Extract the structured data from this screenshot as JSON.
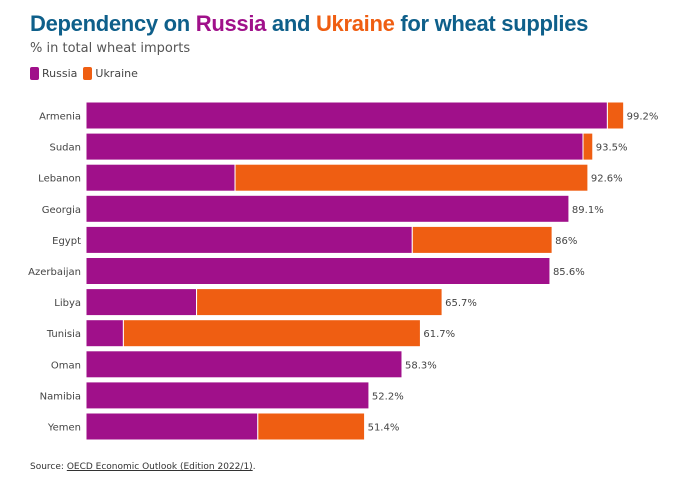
{
  "header": {
    "title_parts": [
      "Dependency on ",
      "Russia",
      " and ",
      "Ukraine",
      " for wheat supplies"
    ],
    "subtitle": "% in total wheat imports"
  },
  "colors": {
    "title": "#0e5f8a",
    "russia": "#a0108a",
    "ukraine": "#ef5e12",
    "label": "#444444",
    "value": "#444444"
  },
  "legend": {
    "russia_label": "Russia",
    "ukraine_label": "Ukraine"
  },
  "source": {
    "prefix": "Source: ",
    "link_text": "OECD Economic Outlook (Edition 2022/1)",
    "suffix": "."
  },
  "chart_data": {
    "type": "bar",
    "orientation": "horizontal",
    "stacked": true,
    "title": "Dependency on Russia and Ukraine for wheat supplies",
    "subtitle": "% in total wheat imports",
    "xlim": [
      0,
      100
    ],
    "grid": false,
    "legend_position": "top-left",
    "categories": [
      "Armenia",
      "Sudan",
      "Lebanon",
      "Georgia",
      "Egypt",
      "Azerbaijan",
      "Libya",
      "Tunisia",
      "Oman",
      "Namibia",
      "Yemen"
    ],
    "series": [
      {
        "name": "Russia",
        "values": [
          96.2,
          91.7,
          27.5,
          89.1,
          60.2,
          85.6,
          20.4,
          6.9,
          58.3,
          52.2,
          31.7
        ]
      },
      {
        "name": "Ukraine",
        "values": [
          3.0,
          1.8,
          65.1,
          0,
          25.8,
          0,
          45.3,
          54.8,
          0,
          0,
          19.7
        ]
      }
    ],
    "totals": [
      99.2,
      93.5,
      92.6,
      89.1,
      86,
      85.6,
      65.7,
      61.7,
      58.3,
      52.2,
      51.4
    ],
    "total_labels": [
      "99.2%",
      "93.5%",
      "92.6%",
      "89.1%",
      "86%",
      "85.6%",
      "65.7%",
      "61.7%",
      "58.3%",
      "52.2%",
      "51.4%"
    ]
  }
}
